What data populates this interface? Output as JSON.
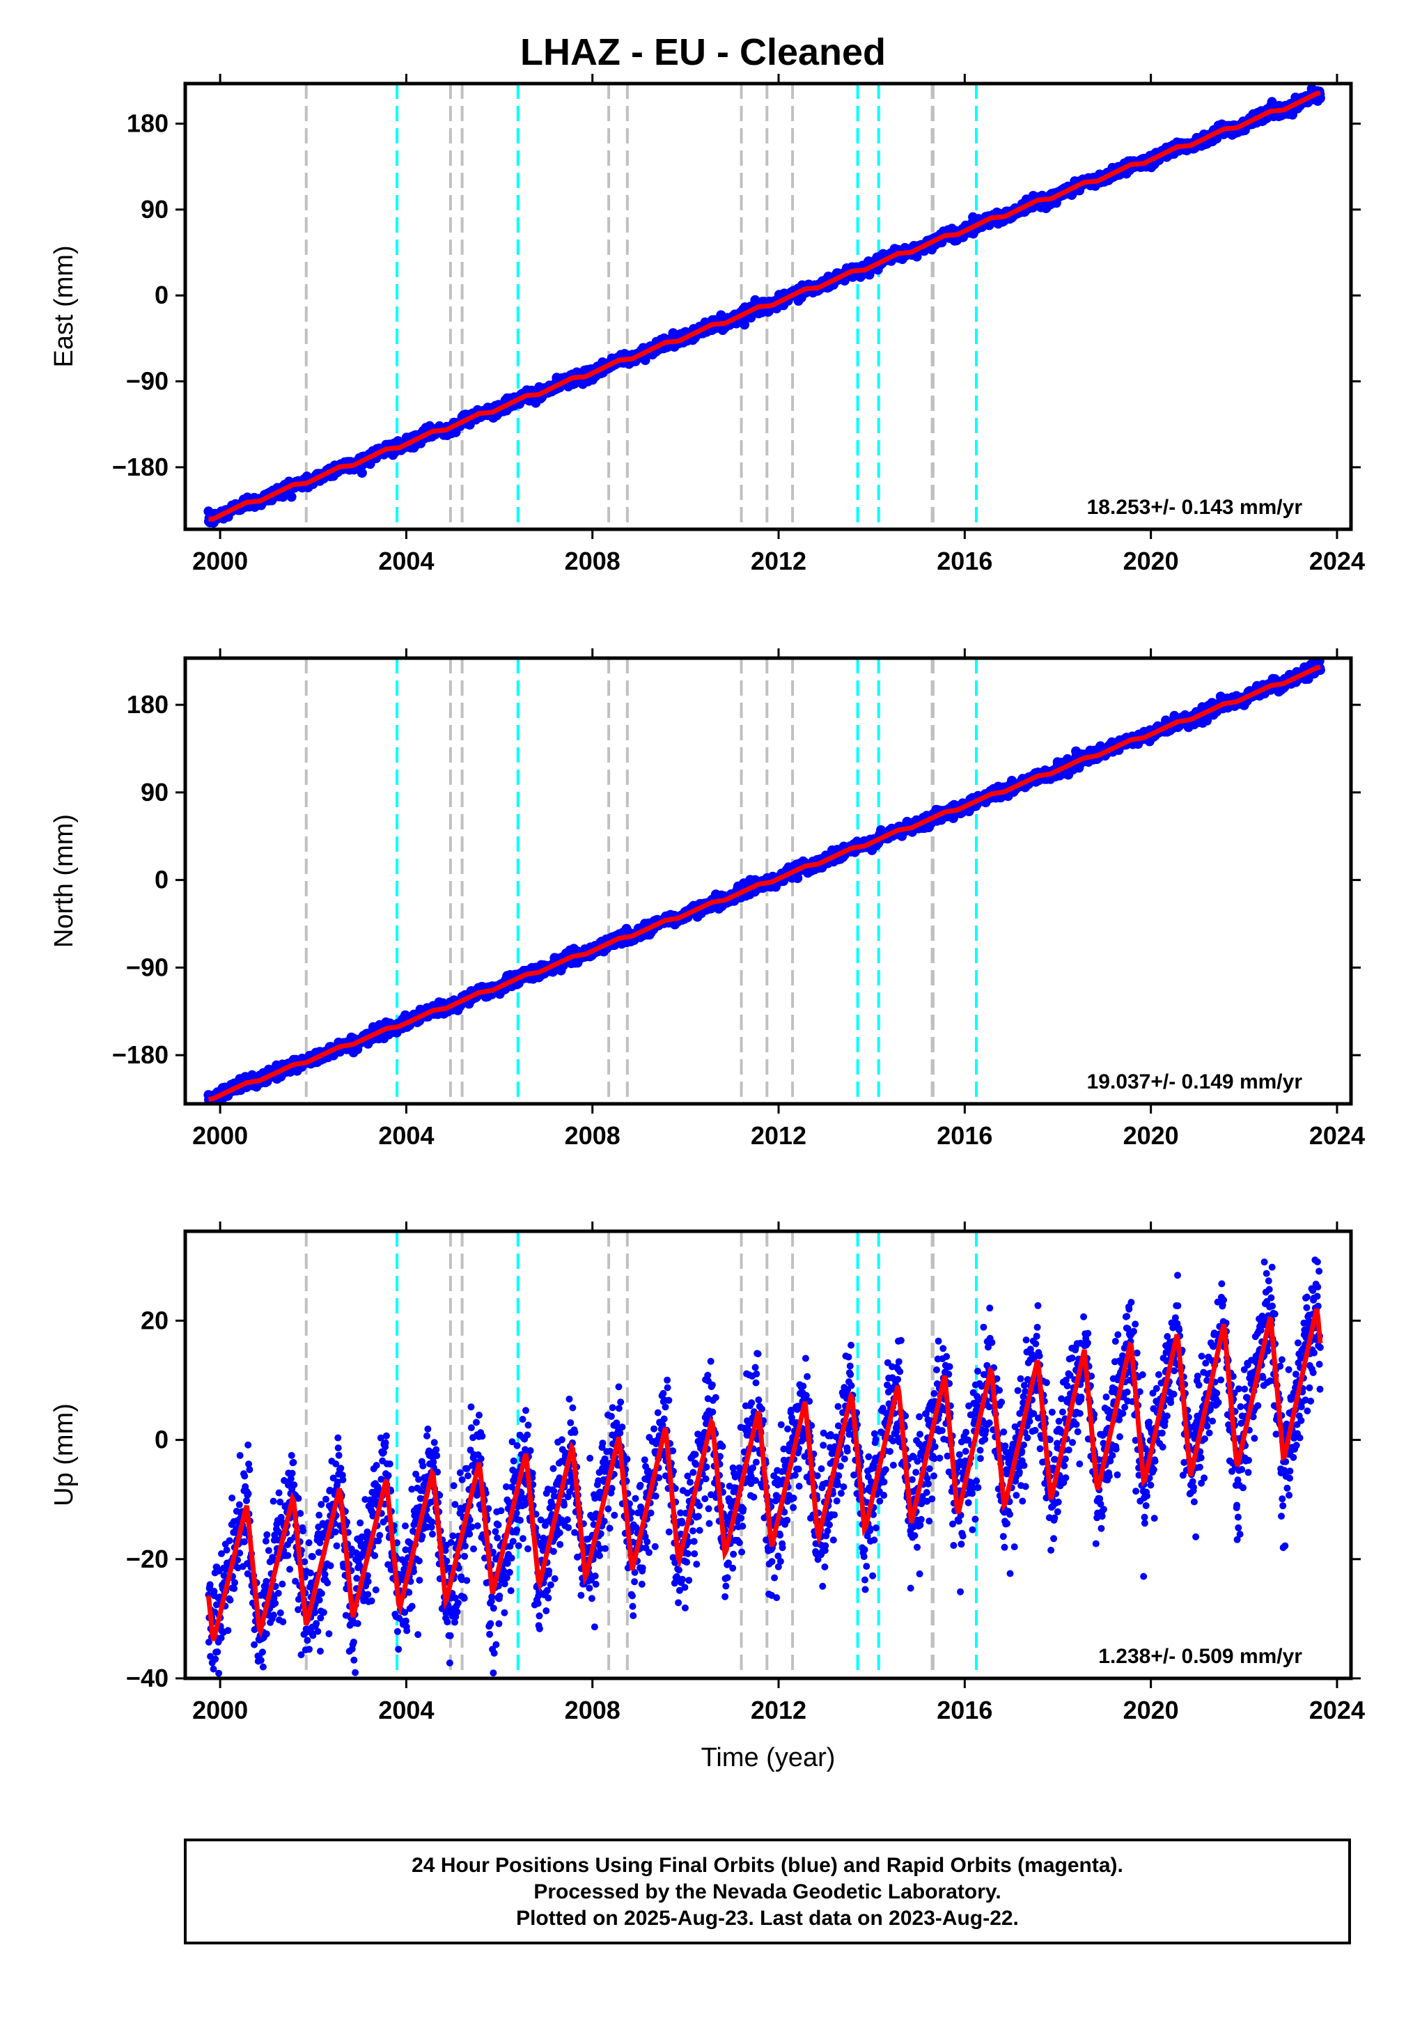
{
  "title": "LHAZ  - EU - Cleaned",
  "footer": {
    "line1": "24 Hour Positions Using Final Orbits (blue) and Rapid Orbits (magenta).",
    "line2": "Processed by the Nevada Geodetic Laboratory.",
    "line3": "Plotted on 2025-Aug-23. Last data on 2023-Aug-22."
  },
  "colors": {
    "data": "#0000ff",
    "model": "#ff0000",
    "gray_marker": "#c0c0c0",
    "cyan_marker": "#00ffff",
    "axes": "#000000"
  },
  "chart_data": [
    {
      "type": "scatter",
      "name": "east",
      "ylabel": "East (mm)",
      "xlabel": "",
      "xlim": [
        1999.25,
        2024.3
      ],
      "ylim": [
        -245,
        222
      ],
      "yticks": [
        -180,
        -90,
        0,
        90,
        180
      ],
      "xticks": [
        2000,
        2004,
        2008,
        2012,
        2016,
        2020,
        2024
      ],
      "rate_label": "18.253+/- 0.143 mm/yr",
      "start": [
        1999.75,
        -234
      ],
      "end": [
        2023.64,
        211
      ],
      "scatter_sd": 3,
      "seasonal_amp": 2
    },
    {
      "type": "scatter",
      "name": "north",
      "ylabel": "North (mm)",
      "xlabel": "",
      "xlim": [
        1999.25,
        2024.3
      ],
      "ylim": [
        -230,
        228
      ],
      "yticks": [
        -180,
        -90,
        0,
        90,
        180
      ],
      "xticks": [
        2000,
        2004,
        2008,
        2012,
        2016,
        2020,
        2024
      ],
      "rate_label": "19.037+/- 0.149 mm/yr",
      "start": [
        1999.75,
        -225
      ],
      "end": [
        2023.64,
        218
      ],
      "scatter_sd": 3,
      "seasonal_amp": 1.5
    },
    {
      "type": "scatter",
      "name": "up",
      "ylabel": "Up (mm)",
      "xlabel": "Time (year)",
      "xlim": [
        1999.25,
        2024.3
      ],
      "ylim": [
        -40,
        35
      ],
      "yticks": [
        -40,
        -20,
        0,
        20
      ],
      "xticks": [
        2000,
        2004,
        2008,
        2012,
        2016,
        2020,
        2024
      ],
      "rate_label": "1.238+/- 0.509 mm/yr",
      "start": [
        1999.75,
        -23
      ],
      "end": [
        2023.64,
        10
      ],
      "scatter_sd": 5,
      "seasonal_amp": 11
    }
  ],
  "markers": {
    "gray": [
      2001.85,
      2004.95,
      2005.2,
      2008.35,
      2008.75,
      2011.2,
      2011.75,
      2012.3,
      2015.3,
      2015.32
    ],
    "cyan": [
      2003.8,
      2006.4,
      2013.7,
      2014.15,
      2016.25
    ]
  }
}
